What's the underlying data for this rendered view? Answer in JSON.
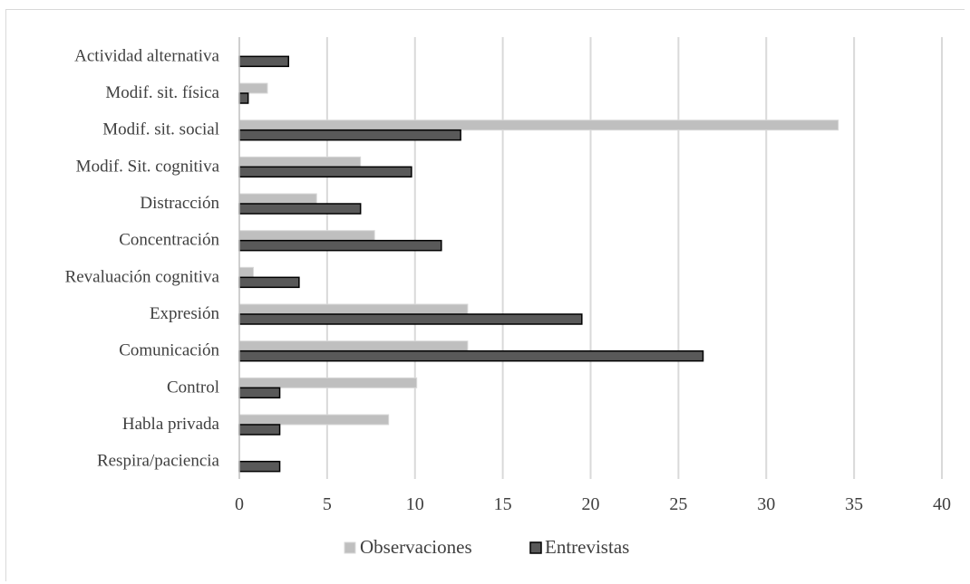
{
  "chart_data": {
    "type": "bar",
    "orientation": "horizontal",
    "categories": [
      "Actividad alternativa",
      "Modif. sit. física",
      "Modif. sit. social",
      "Modif. Sit. cognitiva",
      "Distracción",
      "Concentración",
      "Revaluación cognitiva",
      "Expresión",
      "Comunicación",
      "Control",
      "Habla privada",
      "Respira/paciencia"
    ],
    "series": [
      {
        "name": "Observaciones",
        "color": "#bfbfbf",
        "values": [
          0,
          1.6,
          34.1,
          6.9,
          4.4,
          7.7,
          0.8,
          13.0,
          13.0,
          10.1,
          8.5,
          0
        ]
      },
      {
        "name": "Entrevistas",
        "color": "#595959",
        "values": [
          2.8,
          0.5,
          12.6,
          9.8,
          6.9,
          11.5,
          3.4,
          19.5,
          26.4,
          2.3,
          2.3,
          2.3
        ]
      }
    ],
    "xlim": [
      0,
      40
    ],
    "xticks": [
      0,
      5,
      10,
      15,
      20,
      25,
      30,
      35,
      40
    ],
    "grid": "vertical",
    "legend_position": "bottom"
  }
}
